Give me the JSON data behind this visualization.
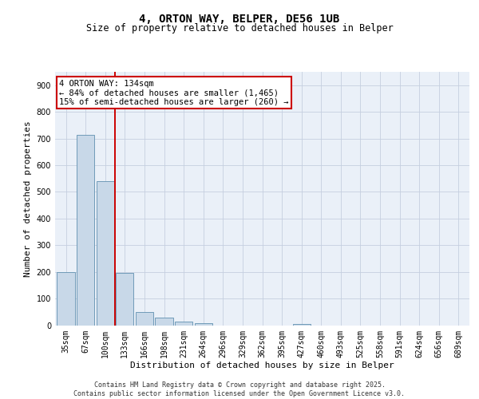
{
  "title_line1": "4, ORTON WAY, BELPER, DE56 1UB",
  "title_line2": "Size of property relative to detached houses in Belper",
  "xlabel": "Distribution of detached houses by size in Belper",
  "ylabel": "Number of detached properties",
  "footer_line1": "Contains HM Land Registry data © Crown copyright and database right 2025.",
  "footer_line2": "Contains public sector information licensed under the Open Government Licence v3.0.",
  "annotation_line1": "4 ORTON WAY: 134sqm",
  "annotation_line2": "← 84% of detached houses are smaller (1,465)",
  "annotation_line3": "15% of semi-detached houses are larger (260) →",
  "bar_color": "#c8d8e8",
  "bar_edge_color": "#6090b0",
  "marker_line_color": "#cc0000",
  "background_color": "#eaf0f8",
  "grid_color": "#c5cfe0",
  "categories": [
    "35sqm",
    "67sqm",
    "100sqm",
    "133sqm",
    "166sqm",
    "198sqm",
    "231sqm",
    "264sqm",
    "296sqm",
    "329sqm",
    "362sqm",
    "395sqm",
    "427sqm",
    "460sqm",
    "493sqm",
    "525sqm",
    "558sqm",
    "591sqm",
    "624sqm",
    "656sqm",
    "689sqm"
  ],
  "values": [
    200,
    715,
    540,
    195,
    48,
    28,
    14,
    7,
    0,
    0,
    0,
    0,
    3,
    0,
    0,
    0,
    0,
    0,
    0,
    0,
    0
  ],
  "ylim": [
    0,
    950
  ],
  "yticks": [
    0,
    100,
    200,
    300,
    400,
    500,
    600,
    700,
    800,
    900
  ],
  "marker_index": 2.5,
  "title_fontsize": 10,
  "subtitle_fontsize": 8.5,
  "axis_label_fontsize": 8,
  "tick_fontsize": 7,
  "annotation_fontsize": 7.5,
  "footer_fontsize": 6
}
